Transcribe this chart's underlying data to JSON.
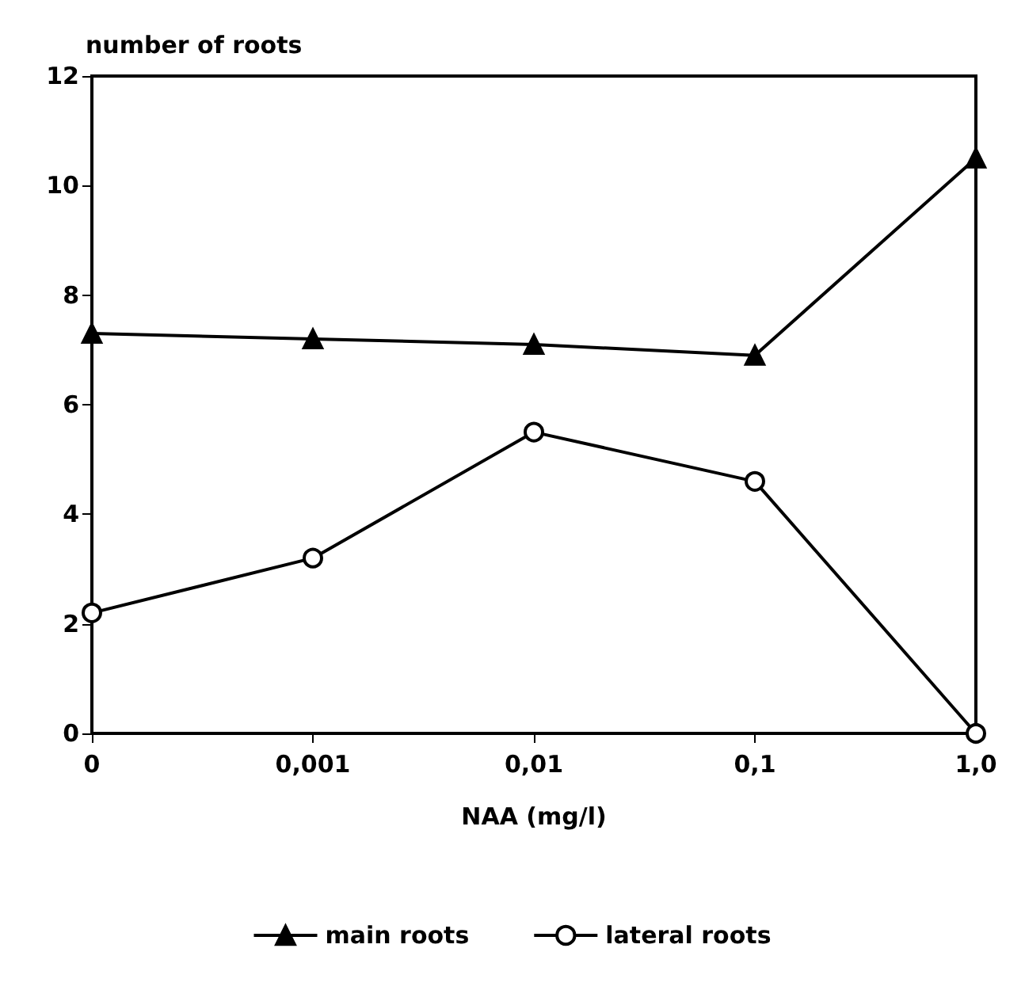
{
  "chart_data": {
    "type": "line",
    "ylabel": "number of roots",
    "xlabel": "NAA (mg/l)",
    "categories": [
      "0",
      "0,001",
      "0,01",
      "0,1",
      "1,0"
    ],
    "series": [
      {
        "name": "main roots",
        "color": "#000000",
        "marker": "triangle",
        "values": [
          7.3,
          7.2,
          7.1,
          6.9,
          10.5
        ]
      },
      {
        "name": "lateral roots",
        "color": "#000000",
        "marker": "circle",
        "values": [
          2.2,
          3.2,
          5.5,
          4.6,
          0
        ]
      }
    ],
    "ylim": [
      0,
      12
    ],
    "yticks": [
      0,
      2,
      4,
      6,
      8,
      10,
      12
    ],
    "grid": false,
    "legend": "bottom",
    "line_style": "solid"
  }
}
